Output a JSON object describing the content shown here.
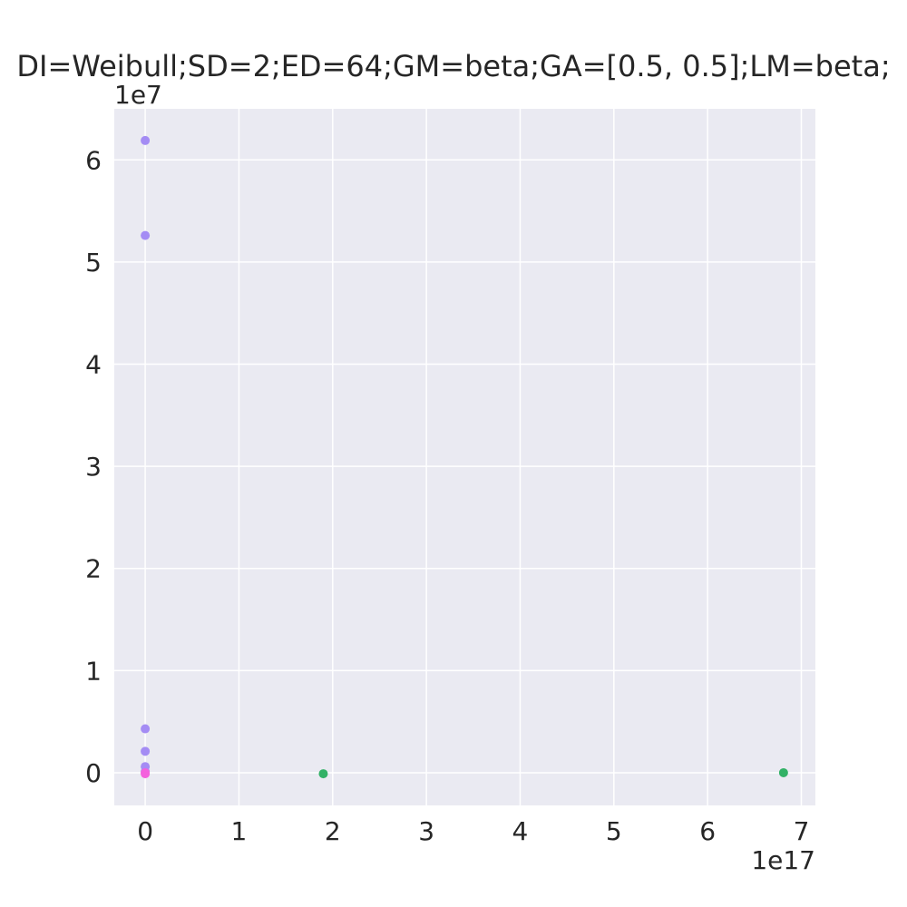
{
  "chart_data": {
    "type": "scatter",
    "title": "DI=Weibull;SD=2;ED=64;GM=beta;GA=[0.5, 0.5];LM=beta;",
    "xlabel": "",
    "ylabel": "",
    "x_offset_label": "1e17",
    "y_offset_label": "1e7",
    "xlim": [
      -0.33,
      7.15
    ],
    "ylim": [
      -0.32,
      6.5
    ],
    "x_ticks": [
      0,
      1,
      2,
      3,
      4,
      5,
      6,
      7
    ],
    "y_ticks": [
      0,
      1,
      2,
      3,
      4,
      5,
      6
    ],
    "x_tick_labels": [
      "0",
      "1",
      "2",
      "3",
      "4",
      "5",
      "6",
      "7"
    ],
    "y_tick_labels": [
      "0",
      "1",
      "2",
      "3",
      "4",
      "5",
      "6"
    ],
    "grid": true,
    "background": "#eaeaf2",
    "series": [
      {
        "color": "#a48cf4",
        "points": [
          {
            "x": 0.0,
            "y": 6.19
          },
          {
            "x": 0.0,
            "y": 5.26
          },
          {
            "x": 0.0,
            "y": 0.43
          },
          {
            "x": 0.0,
            "y": 0.21
          },
          {
            "x": 0.0,
            "y": 0.06
          },
          {
            "x": 0.0,
            "y": 0.01
          }
        ]
      },
      {
        "color": "#32b166",
        "points": [
          {
            "x": 1.9,
            "y": -0.01
          },
          {
            "x": 6.81,
            "y": 0.0
          }
        ]
      },
      {
        "color": "#f461dd",
        "points": [
          {
            "x": 0.0,
            "y": -0.01
          },
          {
            "x": 0.0,
            "y": 0.0
          }
        ]
      }
    ]
  }
}
